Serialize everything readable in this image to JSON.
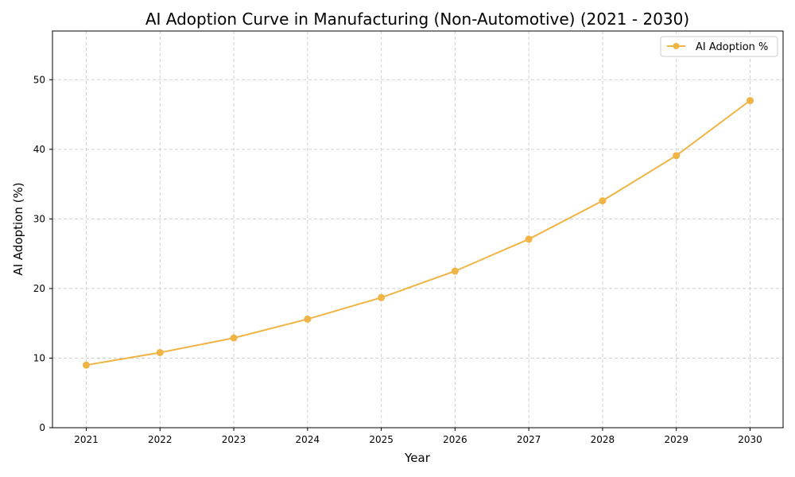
{
  "chart_data": {
    "type": "line",
    "title": "AI Adoption Curve in Manufacturing (Non-Automotive) (2021 - 2030)",
    "xlabel": "Year",
    "ylabel": "AI Adoption (%)",
    "x": [
      "2021",
      "2022",
      "2023",
      "2024",
      "2025",
      "2026",
      "2027",
      "2028",
      "2029",
      "2030"
    ],
    "series": [
      {
        "name": "AI Adoption %",
        "values": [
          9.0,
          10.8,
          12.9,
          15.6,
          18.7,
          22.5,
          27.1,
          32.6,
          39.1,
          47.0
        ],
        "color": "#f0b445"
      }
    ],
    "ylim": [
      0,
      57
    ],
    "yticks": [
      0,
      10,
      20,
      30,
      40,
      50
    ],
    "grid": true,
    "grid_style": "dashed",
    "legend_position": "top-right"
  }
}
